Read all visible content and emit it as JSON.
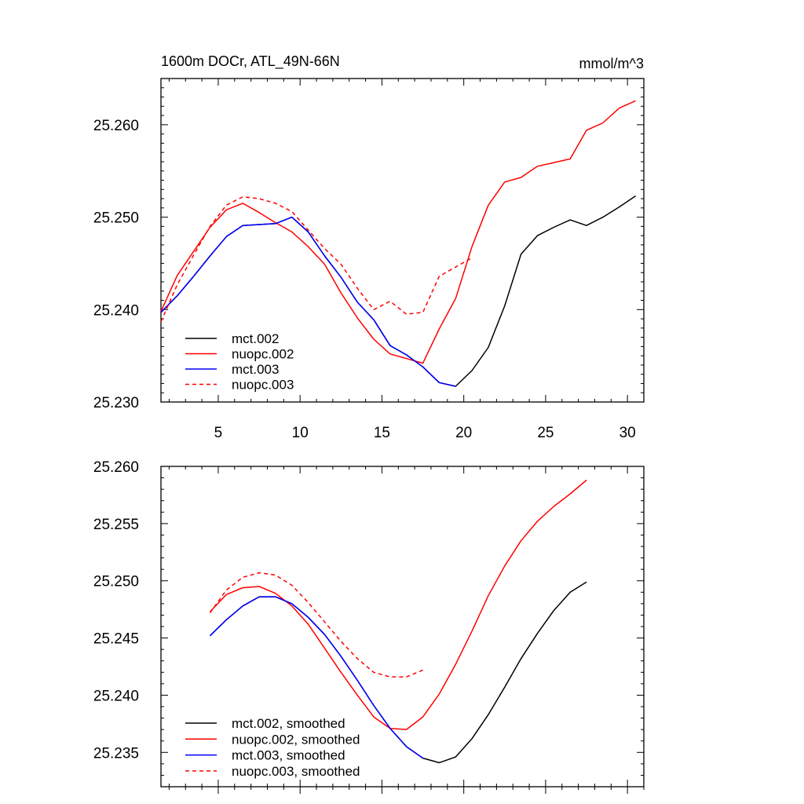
{
  "chart_data": [
    {
      "type": "line",
      "title": "1600m DOCr, ATL_49N-66N",
      "units_label": "mmol/m^3",
      "xlim": [
        1.5,
        31
      ],
      "ylim": [
        25.23,
        25.265
      ],
      "x_ticks": [
        5,
        10,
        15,
        20,
        25,
        30
      ],
      "x_tick_labels": [
        "5",
        "10",
        "15",
        "20",
        "25",
        "30"
      ],
      "y_ticks": [
        25.23,
        25.24,
        25.25,
        25.26
      ],
      "y_tick_labels": [
        "25.230",
        "25.240",
        "25.250",
        "25.260"
      ],
      "legend_position": "bottom-left",
      "series": [
        {
          "name": "mct.002",
          "color": "#000000",
          "dash": "solid",
          "x": [
            1.5,
            2.5,
            3.5,
            4.5,
            5.5,
            6.5,
            7.5,
            8.5,
            9.5,
            10.5,
            11.5,
            12.5,
            13.5,
            14.5,
            15.5,
            16.5,
            17.5,
            18.5,
            19.5,
            20.5,
            21.5,
            22.5,
            23.5,
            24.5,
            25.5,
            26.5,
            27.5,
            28.5,
            29.5,
            30.5
          ],
          "y": [
            25.2397,
            25.2415,
            25.2436,
            25.2458,
            25.2479,
            25.2491,
            25.2492,
            25.2493,
            25.25,
            25.2484,
            25.2458,
            25.2435,
            25.2408,
            25.2389,
            25.2361,
            25.2351,
            25.2338,
            25.2321,
            25.2317,
            25.2334,
            25.2359,
            25.2404,
            25.246,
            25.248,
            25.2489,
            25.2497,
            25.2491,
            25.25,
            25.2511,
            25.2523
          ]
        },
        {
          "name": "nuopc.002",
          "color": "#ff0000",
          "dash": "solid",
          "x": [
            1.5,
            2.5,
            3.5,
            4.5,
            5.5,
            6.5,
            7.5,
            8.5,
            9.5,
            10.5,
            11.5,
            12.5,
            13.5,
            14.5,
            15.5,
            16.5,
            17.5,
            18.5,
            19.5,
            20.5,
            21.5,
            22.5,
            23.5,
            24.5,
            25.5,
            26.5,
            27.5,
            28.5,
            29.5,
            30.5
          ],
          "y": [
            25.2398,
            25.2437,
            25.2463,
            25.2489,
            25.2508,
            25.2515,
            25.2505,
            25.2494,
            25.2484,
            25.2468,
            25.2449,
            25.2418,
            25.2391,
            25.2368,
            25.2352,
            25.2347,
            25.2342,
            25.2379,
            25.2412,
            25.2468,
            25.2513,
            25.2538,
            25.2543,
            25.2555,
            25.2559,
            25.2563,
            25.2594,
            25.2602,
            25.2618,
            25.2626
          ]
        },
        {
          "name": "mct.003",
          "color": "#0000ff",
          "dash": "solid",
          "x": [
            1.5,
            2.5,
            3.5,
            4.5,
            5.5,
            6.5,
            7.5,
            8.5,
            9.5,
            10.5,
            11.5,
            12.5,
            13.5,
            14.5,
            15.5,
            16.5,
            17.5,
            18.5,
            19.5
          ],
          "y": [
            25.2397,
            25.2415,
            25.2436,
            25.2458,
            25.2479,
            25.2491,
            25.2492,
            25.2493,
            25.25,
            25.2484,
            25.2458,
            25.2435,
            25.2408,
            25.2389,
            25.2361,
            25.2351,
            25.2338,
            25.2321,
            25.2317
          ]
        },
        {
          "name": "nuopc.003",
          "color": "#ff0000",
          "dash": "dashed",
          "x": [
            1.5,
            2.5,
            3.5,
            4.5,
            5.5,
            6.5,
            7.5,
            8.5,
            9.5,
            10.5,
            11.5,
            12.5,
            13.5,
            14.5,
            15.5,
            16.5,
            17.5,
            18.5,
            19.5,
            20.5
          ],
          "y": [
            25.2387,
            25.2427,
            25.2459,
            25.249,
            25.2513,
            25.2522,
            25.252,
            25.2515,
            25.2506,
            25.2486,
            25.2466,
            25.2449,
            25.2423,
            25.24,
            25.2409,
            25.2395,
            25.2397,
            25.2436,
            25.2446,
            25.2456
          ]
        }
      ]
    },
    {
      "type": "line",
      "title": "",
      "units_label": "",
      "xlim": [
        1.5,
        31
      ],
      "ylim": [
        25.232,
        25.26
      ],
      "x_ticks": [
        5,
        10,
        15,
        20,
        25,
        30
      ],
      "x_tick_labels": [],
      "y_ticks": [
        25.235,
        25.24,
        25.245,
        25.25,
        25.255,
        25.26
      ],
      "y_tick_labels": [
        "25.235",
        "25.240",
        "25.245",
        "25.250",
        "25.255",
        "25.260"
      ],
      "legend_position": "bottom-left",
      "series": [
        {
          "name": "mct.002, smoothed",
          "color": "#000000",
          "dash": "solid",
          "x": [
            4.5,
            5.5,
            6.5,
            7.5,
            8.5,
            9.5,
            10.5,
            11.5,
            12.5,
            13.5,
            14.5,
            15.5,
            16.5,
            17.5,
            18.5,
            19.5,
            20.5,
            21.5,
            22.5,
            23.5,
            24.5,
            25.5,
            26.5,
            27.5
          ],
          "y": [
            25.2452,
            25.2466,
            25.2478,
            25.2486,
            25.2486,
            25.248,
            25.2468,
            25.2453,
            25.2434,
            25.2413,
            25.2391,
            25.2371,
            25.2355,
            25.2345,
            25.2341,
            25.2346,
            25.2362,
            25.2383,
            25.2407,
            25.2432,
            25.2454,
            25.2474,
            25.249,
            25.2499
          ]
        },
        {
          "name": "nuopc.002, smoothed",
          "color": "#ff0000",
          "dash": "solid",
          "x": [
            4.5,
            5.5,
            6.5,
            7.5,
            8.5,
            9.5,
            10.5,
            11.5,
            12.5,
            13.5,
            14.5,
            15.5,
            16.5,
            17.5,
            18.5,
            19.5,
            20.5,
            21.5,
            22.5,
            23.5,
            24.5,
            25.5,
            26.5,
            27.5
          ],
          "y": [
            25.2473,
            25.2488,
            25.2494,
            25.2495,
            25.2489,
            25.2478,
            25.2462,
            25.2441,
            25.242,
            25.24,
            25.2381,
            25.2371,
            25.237,
            25.2381,
            25.2401,
            25.2427,
            25.2456,
            25.2487,
            25.2513,
            25.2535,
            25.2552,
            25.2565,
            25.2576,
            25.2588
          ]
        },
        {
          "name": "mct.003, smoothed",
          "color": "#0000ff",
          "dash": "solid",
          "x": [
            4.5,
            5.5,
            6.5,
            7.5,
            8.5,
            9.5,
            10.5,
            11.5,
            12.5,
            13.5,
            14.5,
            15.5,
            16.5,
            17.5
          ],
          "y": [
            25.2452,
            25.2466,
            25.2478,
            25.2486,
            25.2486,
            25.248,
            25.2468,
            25.2453,
            25.2434,
            25.2413,
            25.2391,
            25.2371,
            25.2355,
            25.2345
          ]
        },
        {
          "name": "nuopc.003, smoothed",
          "color": "#ff0000",
          "dash": "dashed",
          "x": [
            4.5,
            5.5,
            6.5,
            7.5,
            8.5,
            9.5,
            10.5,
            11.5,
            12.5,
            13.5,
            14.5,
            15.5,
            16.5,
            17.5
          ],
          "y": [
            25.2472,
            25.2492,
            25.2503,
            25.2507,
            25.2505,
            25.2496,
            25.2481,
            25.2464,
            25.2447,
            25.2432,
            25.242,
            25.2416,
            25.2416,
            25.2422
          ]
        }
      ]
    }
  ]
}
